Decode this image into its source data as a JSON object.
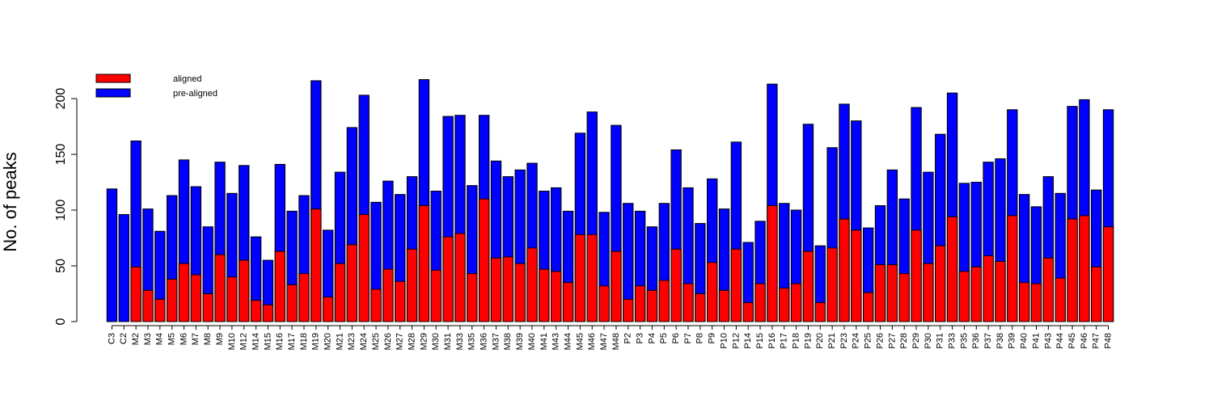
{
  "chart_data": {
    "type": "bar",
    "ylabel": "No. of peaks",
    "categories": [
      "C3",
      "C2",
      "M2",
      "M3",
      "M4",
      "M5",
      "M6",
      "M7",
      "M8",
      "M9",
      "M10",
      "M12",
      "M14",
      "M15",
      "M16",
      "M17",
      "M18",
      "M19",
      "M20",
      "M21",
      "M23",
      "M24",
      "M25",
      "M26",
      "M27",
      "M28",
      "M29",
      "M30",
      "M31",
      "M33",
      "M35",
      "M36",
      "M37",
      "M38",
      "M39",
      "M40",
      "M41",
      "M43",
      "M44",
      "M45",
      "M46",
      "M47",
      "M48",
      "P2",
      "P3",
      "P4",
      "P5",
      "P6",
      "P7",
      "P8",
      "P9",
      "P10",
      "P12",
      "P14",
      "P15",
      "P16",
      "P17",
      "P18",
      "P19",
      "P20",
      "P21",
      "P23",
      "P24",
      "P25",
      "P26",
      "P27",
      "P28",
      "P29",
      "P30",
      "P31",
      "P33",
      "P35",
      "P36",
      "P37",
      "P38",
      "P39",
      "P40",
      "P41",
      "P43",
      "P44",
      "P45",
      "P46",
      "P47",
      "P48"
    ],
    "series": [
      {
        "name": "aligned",
        "color": "#ff0000",
        "values": [
          0,
          0,
          49,
          28,
          20,
          38,
          52,
          42,
          25,
          60,
          40,
          55,
          19,
          15,
          63,
          33,
          43,
          101,
          22,
          52,
          69,
          96,
          29,
          47,
          36,
          65,
          104,
          46,
          76,
          79,
          43,
          110,
          57,
          58,
          52,
          66,
          47,
          45,
          35,
          78,
          78,
          32,
          63,
          20,
          32,
          28,
          37,
          65,
          34,
          25,
          53,
          28,
          65,
          17,
          34,
          104,
          30,
          34,
          63,
          17,
          66,
          92,
          82,
          26,
          51,
          51,
          43,
          82,
          52,
          68,
          94,
          45,
          49,
          59,
          54,
          95,
          35,
          34,
          57,
          39,
          92,
          95,
          49,
          85
        ]
      },
      {
        "name": "pre-aligned",
        "color": "#0000ff",
        "values": [
          119,
          96,
          162,
          101,
          81,
          113,
          145,
          121,
          85,
          143,
          115,
          140,
          76,
          55,
          141,
          99,
          113,
          216,
          82,
          134,
          174,
          203,
          107,
          126,
          114,
          130,
          217,
          117,
          184,
          185,
          122,
          185,
          144,
          130,
          136,
          142,
          117,
          120,
          99,
          169,
          188,
          98,
          176,
          106,
          99,
          85,
          106,
          154,
          120,
          88,
          128,
          101,
          161,
          71,
          90,
          213,
          106,
          100,
          177,
          68,
          156,
          195,
          180,
          84,
          104,
          136,
          110,
          192,
          134,
          168,
          205,
          124,
          125,
          143,
          146,
          190,
          114,
          103,
          130,
          115,
          193,
          199,
          118,
          190
        ]
      }
    ],
    "ylim": [
      0,
      225
    ],
    "yticks": [
      0,
      50,
      100,
      150,
      200
    ],
    "legend": "top-left"
  }
}
